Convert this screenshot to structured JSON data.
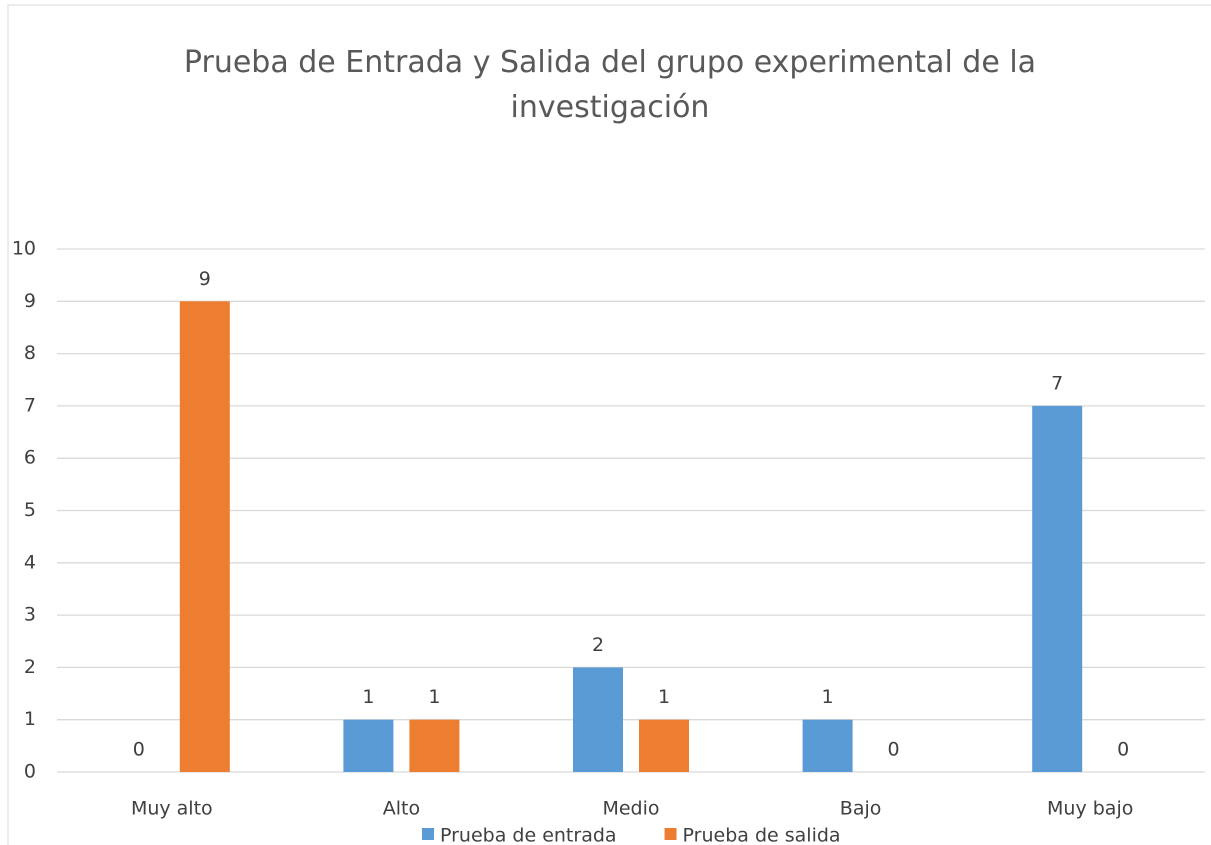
{
  "chart_data": {
    "type": "bar",
    "title": "Prueba de Entrada y Salida del grupo experimental de la investigación",
    "categories": [
      "Muy alto",
      "Alto",
      "Medio",
      "Bajo",
      "Muy bajo"
    ],
    "series": [
      {
        "name": "Prueba de entrada",
        "color": "#5b9bd5",
        "values": [
          0,
          1,
          2,
          1,
          7
        ]
      },
      {
        "name": "Prueba de salida",
        "color": "#ed7d31",
        "values": [
          9,
          1,
          1,
          0,
          0
        ]
      }
    ],
    "ylim": [
      0,
      10
    ],
    "yticks": [
      0,
      1,
      2,
      3,
      4,
      5,
      6,
      7,
      8,
      9,
      10
    ],
    "grid": true,
    "legend": "bottom"
  }
}
